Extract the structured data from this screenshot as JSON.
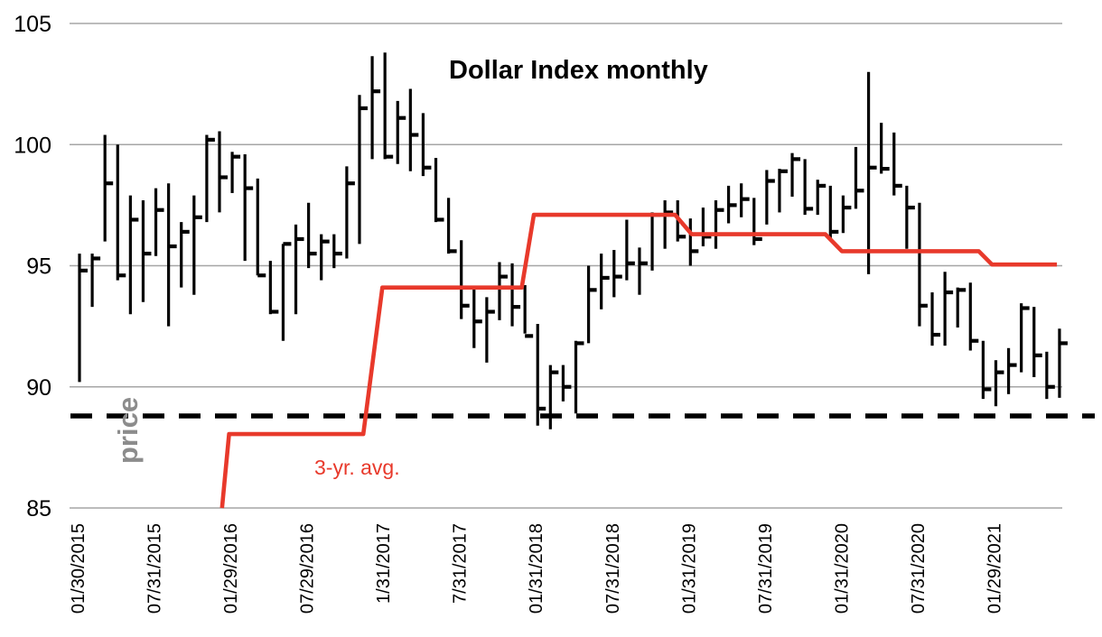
{
  "title": "Dollar Index monthly",
  "annotations": {
    "price_axis_label": "price",
    "avg_line_label": "3-yr. avg."
  },
  "chart_data": {
    "type": "bar",
    "subtype": "hlc-price-bars-with-step-average-line",
    "title": "Dollar Index monthly",
    "ylim": [
      85,
      105
    ],
    "y_ticks": [
      85,
      90,
      95,
      100,
      105
    ],
    "grid": "horizontal-only",
    "x_tick_labels": [
      {
        "index": 0,
        "label": "01/30/2015"
      },
      {
        "index": 6,
        "label": "07/31/2015"
      },
      {
        "index": 12,
        "label": "01/29/2016"
      },
      {
        "index": 18,
        "label": "07/29/2016"
      },
      {
        "index": 24,
        "label": "1/31/2017"
      },
      {
        "index": 30,
        "label": "7/31/2017"
      },
      {
        "index": 36,
        "label": "01/31/2018"
      },
      {
        "index": 42,
        "label": "07/31/2018"
      },
      {
        "index": 48,
        "label": "01/31/2019"
      },
      {
        "index": 54,
        "label": "07/31/2019"
      },
      {
        "index": 60,
        "label": "01/31/2020"
      },
      {
        "index": 66,
        "label": "07/31/2020"
      },
      {
        "index": 72,
        "label": "01/29/2021"
      }
    ],
    "bars_start_month": "2015-01",
    "bars_hlc": [
      [
        95.5,
        90.2,
        94.8
      ],
      [
        95.5,
        93.3,
        95.3
      ],
      [
        100.4,
        96.0,
        98.4
      ],
      [
        100.0,
        94.4,
        94.6
      ],
      [
        97.9,
        93.0,
        96.9
      ],
      [
        97.7,
        93.5,
        95.5
      ],
      [
        98.2,
        95.4,
        97.3
      ],
      [
        98.4,
        92.5,
        95.8
      ],
      [
        96.8,
        94.1,
        96.4
      ],
      [
        97.9,
        93.8,
        97.0
      ],
      [
        100.4,
        96.8,
        100.2
      ],
      [
        100.55,
        97.2,
        98.65
      ],
      [
        99.7,
        98.0,
        99.5
      ],
      [
        99.6,
        95.2,
        98.2
      ],
      [
        98.6,
        94.6,
        94.6
      ],
      [
        95.2,
        93.0,
        93.1
      ],
      [
        95.9,
        91.9,
        95.9
      ],
      [
        96.7,
        93.0,
        96.1
      ],
      [
        97.6,
        94.9,
        95.5
      ],
      [
        96.3,
        94.4,
        96.0
      ],
      [
        96.3,
        94.9,
        95.5
      ],
      [
        99.1,
        95.3,
        98.4
      ],
      [
        102.05,
        95.9,
        101.5
      ],
      [
        103.65,
        99.4,
        102.2
      ],
      [
        103.8,
        99.4,
        99.5
      ],
      [
        101.8,
        99.2,
        101.1
      ],
      [
        102.3,
        98.9,
        100.4
      ],
      [
        101.3,
        98.7,
        99.05
      ],
      [
        99.45,
        96.8,
        96.9
      ],
      [
        97.8,
        95.5,
        95.6
      ],
      [
        96.05,
        92.8,
        93.35
      ],
      [
        94.1,
        91.6,
        92.7
      ],
      [
        93.7,
        91.0,
        93.1
      ],
      [
        95.15,
        92.75,
        94.55
      ],
      [
        95.1,
        92.5,
        93.3
      ],
      [
        94.2,
        92.2,
        92.1
      ],
      [
        92.6,
        88.4,
        89.1
      ],
      [
        90.9,
        88.25,
        90.6
      ],
      [
        90.9,
        89.4,
        90.0
      ],
      [
        91.9,
        88.9,
        91.8
      ],
      [
        95.0,
        91.8,
        94.0
      ],
      [
        95.5,
        93.2,
        94.5
      ],
      [
        95.65,
        93.7,
        94.55
      ],
      [
        96.9,
        94.4,
        95.1
      ],
      [
        95.75,
        93.8,
        95.1
      ],
      [
        97.2,
        94.8,
        97.1
      ],
      [
        97.7,
        95.7,
        97.2
      ],
      [
        97.7,
        96.0,
        96.2
      ],
      [
        96.95,
        95.0,
        95.6
      ],
      [
        97.4,
        95.8,
        96.2
      ],
      [
        97.7,
        95.7,
        97.3
      ],
      [
        98.3,
        96.75,
        97.5
      ],
      [
        98.4,
        97.0,
        97.75
      ],
      [
        97.8,
        95.85,
        96.1
      ],
      [
        98.95,
        96.7,
        98.5
      ],
      [
        99.0,
        97.2,
        98.9
      ],
      [
        99.65,
        97.85,
        99.4
      ],
      [
        99.4,
        97.1,
        97.35
      ],
      [
        98.55,
        97.1,
        98.3
      ],
      [
        98.3,
        96.05,
        96.4
      ],
      [
        97.9,
        96.35,
        97.4
      ],
      [
        99.9,
        97.35,
        98.1
      ],
      [
        103.0,
        94.65,
        99.05
      ],
      [
        100.9,
        98.8,
        99.0
      ],
      [
        100.5,
        97.9,
        98.3
      ],
      [
        98.3,
        95.7,
        97.4
      ],
      [
        97.6,
        92.5,
        93.35
      ],
      [
        93.9,
        91.7,
        92.15
      ],
      [
        94.75,
        91.7,
        93.9
      ],
      [
        94.1,
        92.45,
        94.0
      ],
      [
        94.3,
        91.5,
        91.9
      ],
      [
        91.9,
        89.5,
        89.9
      ],
      [
        91.1,
        89.2,
        90.6
      ],
      [
        91.6,
        89.7,
        90.9
      ],
      [
        93.45,
        90.6,
        93.25
      ],
      [
        93.3,
        90.4,
        91.3
      ],
      [
        91.45,
        89.5,
        90.0
      ],
      [
        92.4,
        89.55,
        91.8
      ]
    ],
    "support_dashed_level": 88.8,
    "avg_line": {
      "label": "3-yr. avg.",
      "points_index_value": [
        [
          11.2,
          85.0
        ],
        [
          11.75,
          88.05
        ],
        [
          22.3,
          88.05
        ],
        [
          23.8,
          94.1
        ],
        [
          34.75,
          94.1
        ],
        [
          35.7,
          97.1
        ],
        [
          46.8,
          97.1
        ],
        [
          48.1,
          96.3
        ],
        [
          58.6,
          96.3
        ],
        [
          59.9,
          95.6
        ],
        [
          70.65,
          95.6
        ],
        [
          71.7,
          95.05
        ],
        [
          76.8,
          95.05
        ]
      ]
    },
    "colors": {
      "price_bar": "#000000",
      "close_tick": "#000000",
      "avg_line": "#e8392b",
      "avg_label": "#e8392b",
      "support_dashed": "#000000",
      "gridline": "#a6a6a6",
      "axis_text": "#000000",
      "price_axis_label": "#8c8c8c",
      "background": "#ffffff"
    },
    "legend_position": "none"
  }
}
